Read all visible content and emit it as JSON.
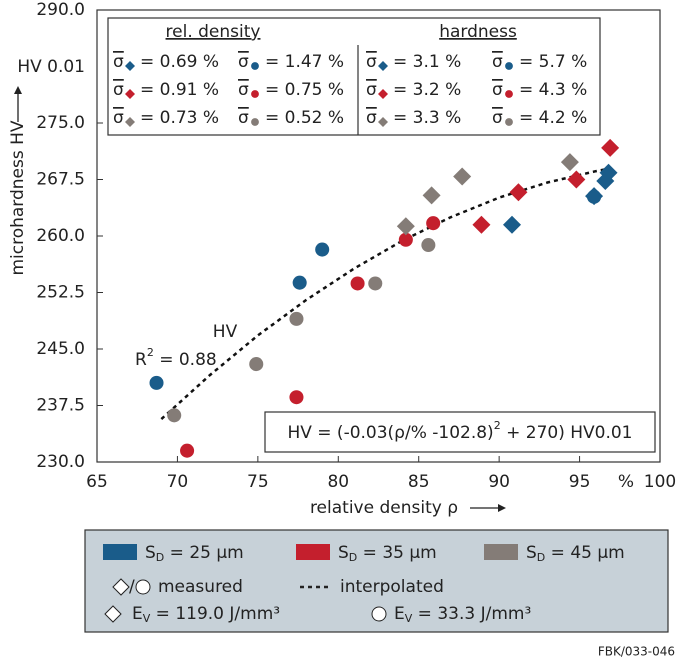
{
  "chart_data": {
    "type": "scatter",
    "xlabel": "relative density ρ",
    "ylabel": "microhardness HV",
    "y_unit": "HV 0.01",
    "x_unit": "%",
    "xlim": [
      65,
      100
    ],
    "ylim": [
      230,
      290
    ],
    "xticks": [
      65,
      70,
      75,
      80,
      85,
      90,
      95,
      100
    ],
    "yticks": [
      {
        "value": 230,
        "label": "230.0"
      },
      {
        "value": 237.5,
        "label": "237.5"
      },
      {
        "value": 245,
        "label": "245.0"
      },
      {
        "value": 252.5,
        "label": "252.5"
      },
      {
        "value": 260,
        "label": "260.0"
      },
      {
        "value": 267.5,
        "label": "267.5"
      },
      {
        "value": 275,
        "label": "275.0"
      },
      {
        "value": 290,
        "label": "290.0"
      }
    ],
    "series": [
      {
        "color": "#1a5c8a",
        "marker": "diamond",
        "x": [
          90.8,
          95.9,
          96.6,
          96.8
        ],
        "values": [
          261.5,
          265.3,
          267.3,
          268.4
        ]
      },
      {
        "color": "#1a5c8a",
        "marker": "circle",
        "x": [
          68.7,
          77.6,
          79.0,
          95.9
        ],
        "values": [
          240.5,
          253.8,
          258.2,
          265.2
        ]
      },
      {
        "color": "#c41f2d",
        "marker": "diamond",
        "x": [
          88.9,
          91.2,
          94.8,
          96.9
        ],
        "values": [
          261.5,
          265.8,
          267.5,
          271.7
        ]
      },
      {
        "color": "#c41f2d",
        "marker": "circle",
        "x": [
          70.6,
          77.4,
          81.2,
          84.2,
          85.9
        ],
        "values": [
          231.5,
          238.6,
          253.7,
          259.5,
          261.7
        ]
      },
      {
        "color": "#847c77",
        "marker": "diamond",
        "x": [
          84.2,
          85.8,
          87.7,
          94.4
        ],
        "values": [
          261.3,
          265.4,
          267.9,
          269.8
        ]
      },
      {
        "color": "#847c77",
        "marker": "circle",
        "x": [
          69.8,
          74.9,
          77.4,
          82.3,
          85.6
        ],
        "values": [
          236.2,
          243.0,
          249.0,
          253.7,
          258.8
        ]
      }
    ],
    "curve": {
      "x": [
        69,
        72,
        75,
        78,
        81,
        84,
        87,
        90,
        93,
        96,
        97
      ],
      "values": [
        235.7,
        241.5,
        246.8,
        251.5,
        255.7,
        259.4,
        262.5,
        265.1,
        267.1,
        268.6,
        269.0
      ]
    },
    "sigma_table": {
      "symbol": "σ",
      "headers": [
        "rel. density",
        "hardness"
      ],
      "columns": [
        [
          "= 0.69 %",
          "= 0.91 %",
          "= 0.73 %"
        ],
        [
          "= 1.47 %",
          "= 0.75 %",
          "= 0.52 %"
        ],
        [
          "= 3.1 %",
          "= 3.2 %",
          "= 3.3 %"
        ],
        [
          "= 5.7 %",
          "= 4.3 %",
          "= 4.2 %"
        ]
      ]
    },
    "r2": {
      "text": "R",
      "sup": "2",
      "after": " = 0.88"
    },
    "curve_label": "HV",
    "formula": {
      "text": "HV = (-0.03(ρ/% -102.8)",
      "sup": "2",
      "after": " + 270) HV0.01"
    },
    "legend": {
      "size_labels": [
        {
          "text": "S",
          "sub": "D",
          "after": " = 25 μm"
        },
        {
          "text": "S",
          "sub": "D",
          "after": " = 35 μm"
        },
        {
          "text": "S",
          "sub": "D",
          "after": " = 45 μm"
        }
      ],
      "separator": "/",
      "measured": "measured",
      "interpolated": "interpolated",
      "energy_labels": [
        {
          "text": "E",
          "sub": "V",
          "after": " = 119.0 J/mm³"
        },
        {
          "text": "E",
          "sub": "V",
          "after": " = 33.3 J/mm³"
        }
      ]
    },
    "footer": "FBK/033-046"
  }
}
